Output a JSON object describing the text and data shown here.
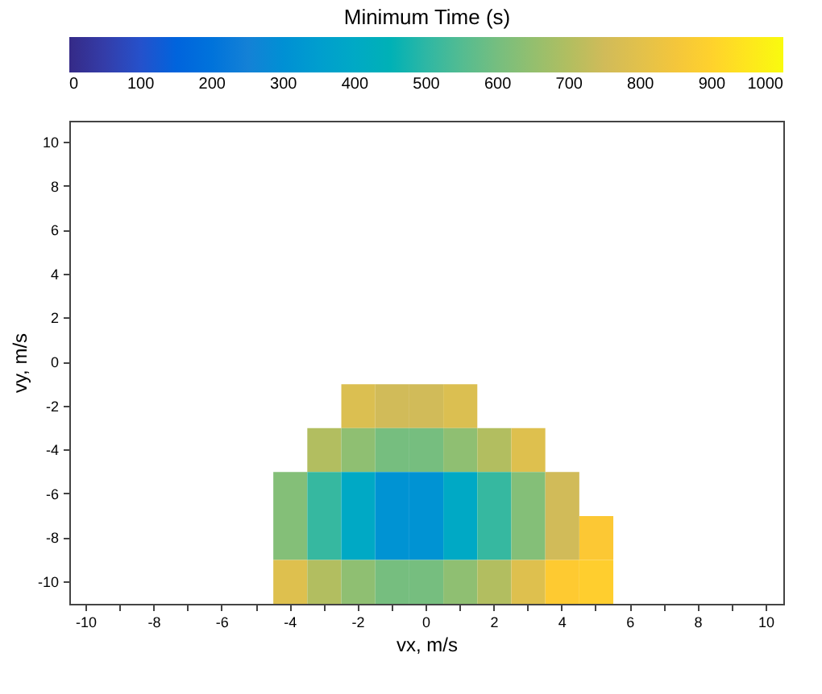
{
  "chart_data": {
    "type": "heatmap",
    "xlabel": "vx, m/s",
    "ylabel": "vy, m/s",
    "clabel": "Minimum Time (s)",
    "categories": [
      "-10",
      null,
      "-8",
      null,
      "-6",
      null,
      "-4",
      null,
      "-2",
      null,
      "0",
      null,
      "2",
      null,
      "4",
      null,
      "6",
      null,
      "8",
      null,
      "10"
    ],
    "y_categories": [
      "10",
      "8",
      "6",
      "4",
      "2",
      "0",
      "-2",
      "-4",
      "-6",
      "-8",
      "-10"
    ],
    "cells": [
      [
        null,
        null,
        null,
        null,
        null,
        null,
        null,
        null,
        null,
        null,
        null,
        null,
        null,
        null,
        null,
        null,
        null,
        null,
        null,
        null,
        null
      ],
      [
        null,
        null,
        null,
        null,
        null,
        null,
        null,
        null,
        null,
        null,
        null,
        null,
        null,
        null,
        null,
        null,
        null,
        null,
        null,
        null,
        null
      ],
      [
        null,
        null,
        null,
        null,
        null,
        null,
        null,
        null,
        null,
        null,
        null,
        null,
        null,
        null,
        null,
        null,
        null,
        null,
        null,
        null,
        null
      ],
      [
        null,
        null,
        null,
        null,
        null,
        null,
        null,
        null,
        null,
        null,
        null,
        null,
        null,
        null,
        null,
        null,
        null,
        null,
        null,
        null,
        null
      ],
      [
        null,
        null,
        null,
        null,
        null,
        null,
        null,
        null,
        null,
        null,
        null,
        null,
        null,
        null,
        null,
        null,
        null,
        null,
        null,
        null,
        null
      ],
      [
        null,
        null,
        null,
        null,
        null,
        null,
        null,
        null,
        null,
        null,
        null,
        null,
        null,
        null,
        null,
        null,
        null,
        null,
        null,
        null,
        null
      ],
      [
        null,
        null,
        null,
        null,
        null,
        null,
        null,
        null,
        780,
        750,
        750,
        780,
        null,
        null,
        null,
        null,
        null,
        null,
        null,
        null,
        null
      ],
      [
        null,
        null,
        null,
        null,
        null,
        null,
        null,
        700,
        640,
        600,
        600,
        640,
        700,
        790,
        null,
        null,
        null,
        null,
        null,
        null,
        null
      ],
      [
        null,
        null,
        null,
        null,
        null,
        null,
        620,
        510,
        400,
        310,
        310,
        400,
        510,
        620,
        750,
        null,
        null,
        null,
        null,
        null,
        null
      ],
      [
        null,
        null,
        null,
        null,
        null,
        null,
        620,
        510,
        400,
        310,
        310,
        400,
        510,
        620,
        750,
        870,
        null,
        null,
        null,
        null,
        null
      ],
      [
        null,
        null,
        null,
        null,
        null,
        null,
        790,
        700,
        640,
        600,
        600,
        640,
        700,
        790,
        880,
        890,
        null,
        null,
        null,
        null,
        null
      ]
    ],
    "clim": [
      0,
      1000
    ],
    "cticks": [
      0,
      100,
      200,
      300,
      400,
      500,
      600,
      700,
      800,
      900,
      1000
    ],
    "grid": false
  }
}
